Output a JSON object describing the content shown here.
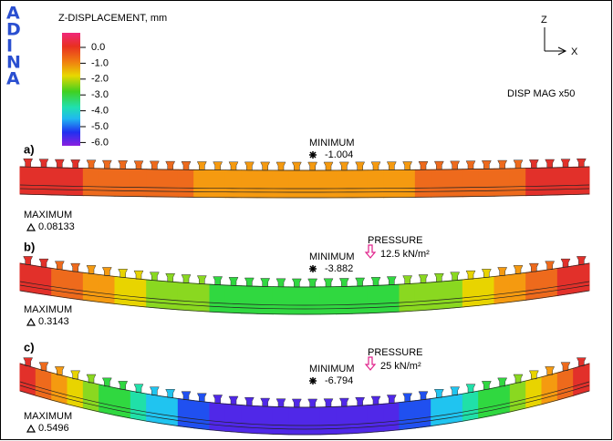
{
  "logo": {
    "letters": [
      "A",
      "D",
      "I",
      "N",
      "A"
    ]
  },
  "legend": {
    "title": "Z-DISPLACEMENT, mm",
    "labels": [
      "0.0",
      "-1.0",
      "-2.0",
      "-3.0",
      "-4.0",
      "-5.0",
      "-6.0"
    ]
  },
  "axes": {
    "z": "Z",
    "x": "X"
  },
  "disp_mag": "DISP MAG x50",
  "panels": [
    {
      "label": "a)",
      "minimum": {
        "label": "MINIMUM",
        "value": "-1.004"
      },
      "maximum": {
        "label": "MAXIMUM",
        "value": "0.08133"
      }
    },
    {
      "label": "b)",
      "pressure": {
        "label": "PRESSURE",
        "value": "12.5 kN/m²"
      },
      "minimum": {
        "label": "MINIMUM",
        "value": "-3.882"
      },
      "maximum": {
        "label": "MAXIMUM",
        "value": "0.3143"
      }
    },
    {
      "label": "c)",
      "pressure": {
        "label": "PRESSURE",
        "value": "25 kN/m²"
      },
      "minimum": {
        "label": "MINIMUM",
        "value": "-6.794"
      },
      "maximum": {
        "label": "MAXIMUM",
        "value": "0.5496"
      }
    }
  ]
}
